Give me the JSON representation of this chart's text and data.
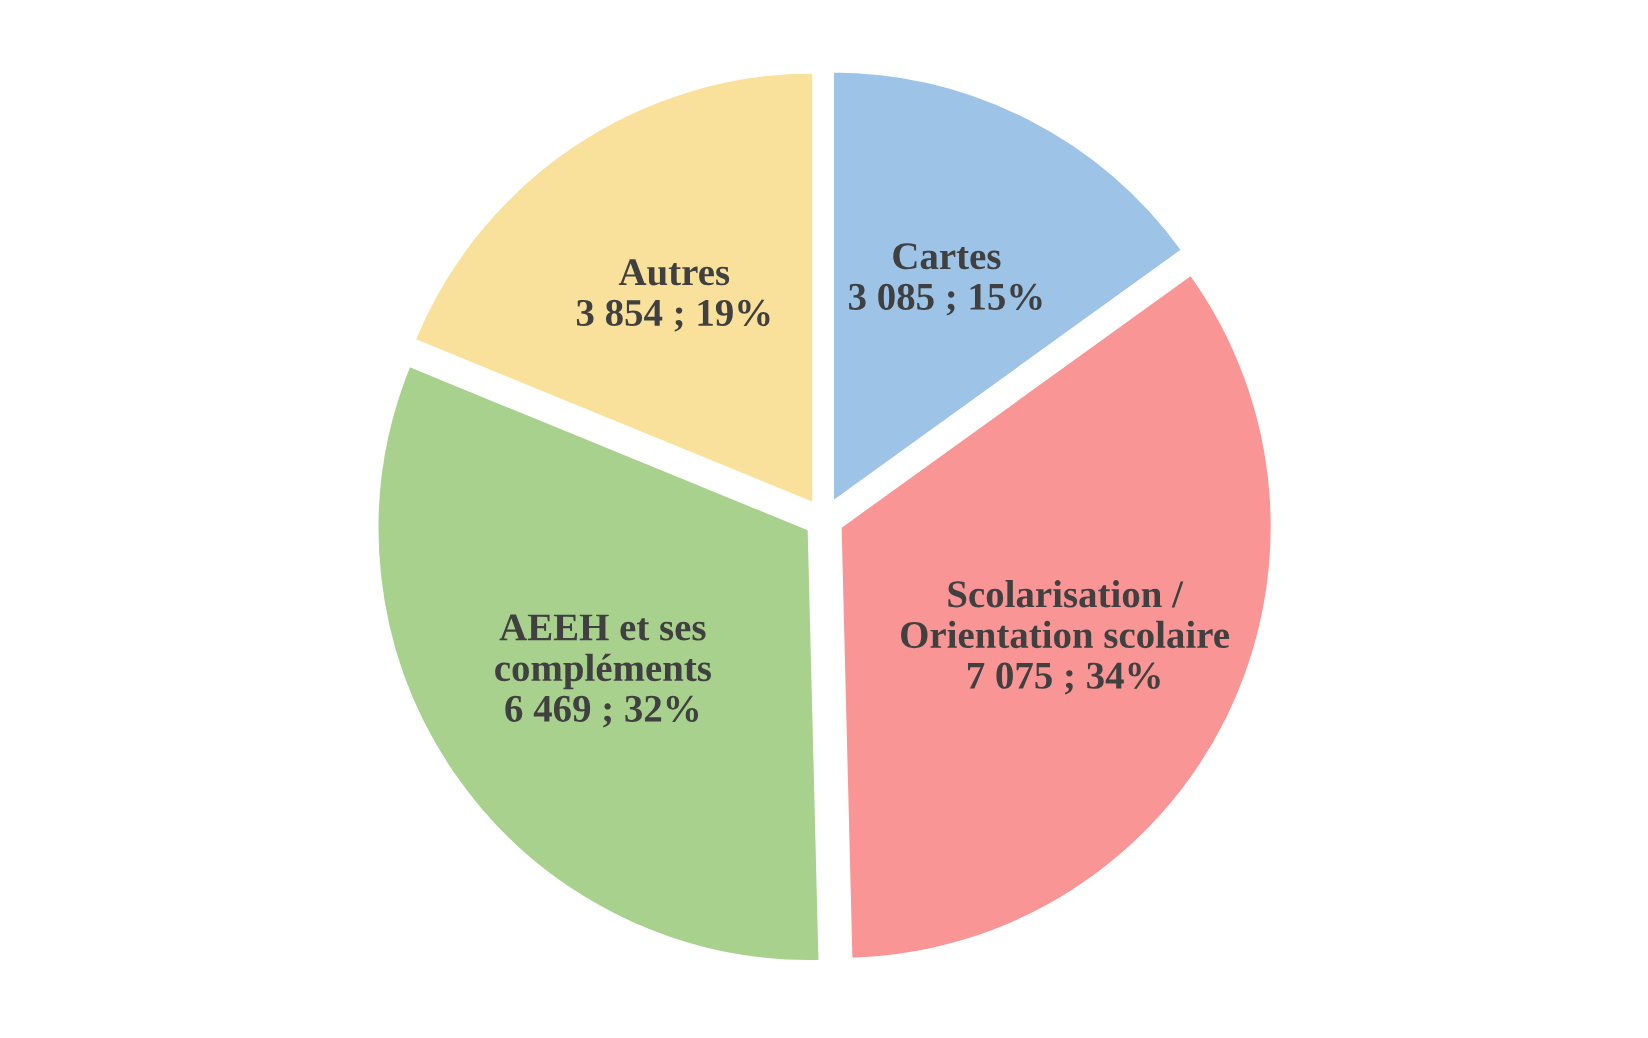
{
  "chart_data": {
    "type": "pie",
    "categories": [
      "Cartes",
      "Scolarisation /\nOrientation scolaire",
      "AEEH et ses\ncompléments",
      "Autres"
    ],
    "values": [
      3085,
      7075,
      6469,
      3854
    ],
    "value_labels": [
      "3 085 ; 15%",
      "7 075 ; 34%",
      "6 469 ; 32%",
      "3 854 ; 19%"
    ],
    "colors": [
      "#9dc3e6",
      "#f99594",
      "#a9d18e",
      "#f9e09b"
    ]
  }
}
